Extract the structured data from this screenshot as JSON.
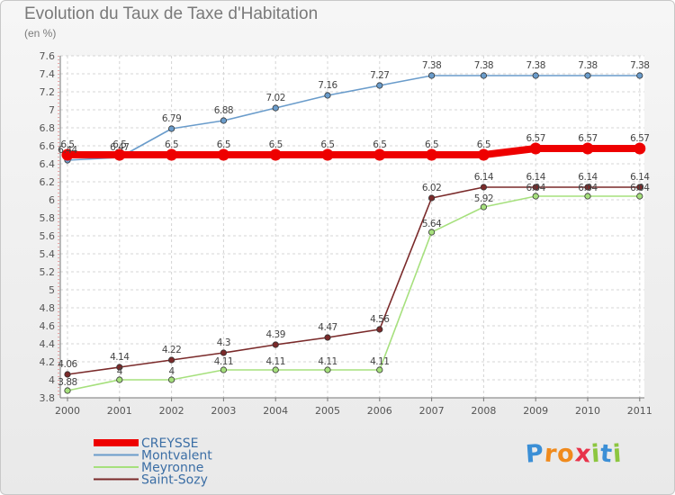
{
  "title": "Evolution du Taux de Taxe d'Habitation",
  "subtitle": "(en %)",
  "logo": {
    "letters": [
      "P",
      "r",
      "o",
      "x",
      "i",
      "t",
      "i"
    ],
    "colors": [
      "#3b8fd6",
      "#f08a1c",
      "#f08a1c",
      "#e8334a",
      "#8cc63f",
      "#3b8fd6",
      "#8cc63f"
    ]
  },
  "chart_data": {
    "type": "line",
    "x": [
      "2000",
      "2001",
      "2002",
      "2003",
      "2004",
      "2005",
      "2006",
      "2007",
      "2008",
      "2009",
      "2010",
      "2011"
    ],
    "ylim": [
      3.8,
      7.6
    ],
    "yticks": [
      "3.8",
      "4",
      "4.2",
      "4.4",
      "4.6",
      "4.8",
      "5",
      "5.2",
      "5.4",
      "5.6",
      "5.8",
      "6",
      "6.2",
      "6.4",
      "6.6",
      "6.8",
      "7",
      "7.2",
      "7.4",
      "7.6"
    ],
    "grid": true,
    "legend_position": "bottom-left",
    "series": [
      {
        "name": "CREYSSE",
        "color": "#ee0000",
        "values": [
          6.5,
          6.5,
          6.5,
          6.5,
          6.5,
          6.5,
          6.5,
          6.5,
          6.5,
          6.57,
          6.57,
          6.57
        ],
        "labels": [
          "6.5",
          "6.5",
          "6.5",
          "6.5",
          "6.5",
          "6.5",
          "6.5",
          "6.5",
          "6.5",
          "6.57",
          "6.57",
          "6.57"
        ]
      },
      {
        "name": "Montvalent",
        "color": "#6a9ccb",
        "values": [
          6.44,
          6.47,
          6.79,
          6.88,
          7.02,
          7.16,
          7.27,
          7.38,
          7.38,
          7.38,
          7.38,
          7.38
        ],
        "labels": [
          "6.44",
          "6.47",
          "6.79",
          "6.88",
          "7.02",
          "7.16",
          "7.27",
          "7.38",
          "7.38",
          "7.38",
          "7.38",
          "7.38"
        ]
      },
      {
        "name": "Meyronne",
        "color": "#a6e07d",
        "values": [
          3.88,
          4,
          4,
          4.11,
          4.11,
          4.11,
          4.11,
          5.64,
          5.92,
          6.04,
          6.04,
          6.04
        ],
        "labels": [
          "3.88",
          "4",
          "4",
          "4.11",
          "4.11",
          "4.11",
          "4.11",
          "5.64",
          "5.92",
          "6.04",
          "6.04",
          "6.04"
        ]
      },
      {
        "name": "Saint-Sozy",
        "color": "#7a2a2a",
        "values": [
          4.06,
          4.14,
          4.22,
          4.3,
          4.39,
          4.47,
          4.56,
          6.02,
          6.14,
          6.14,
          6.14,
          6.14
        ],
        "labels": [
          "4.06",
          "4.14",
          "4.22",
          "4.3",
          "4.39",
          "4.47",
          "4.56",
          "6.02",
          "6.14",
          "6.14",
          "6.14",
          "6.14"
        ]
      }
    ]
  }
}
